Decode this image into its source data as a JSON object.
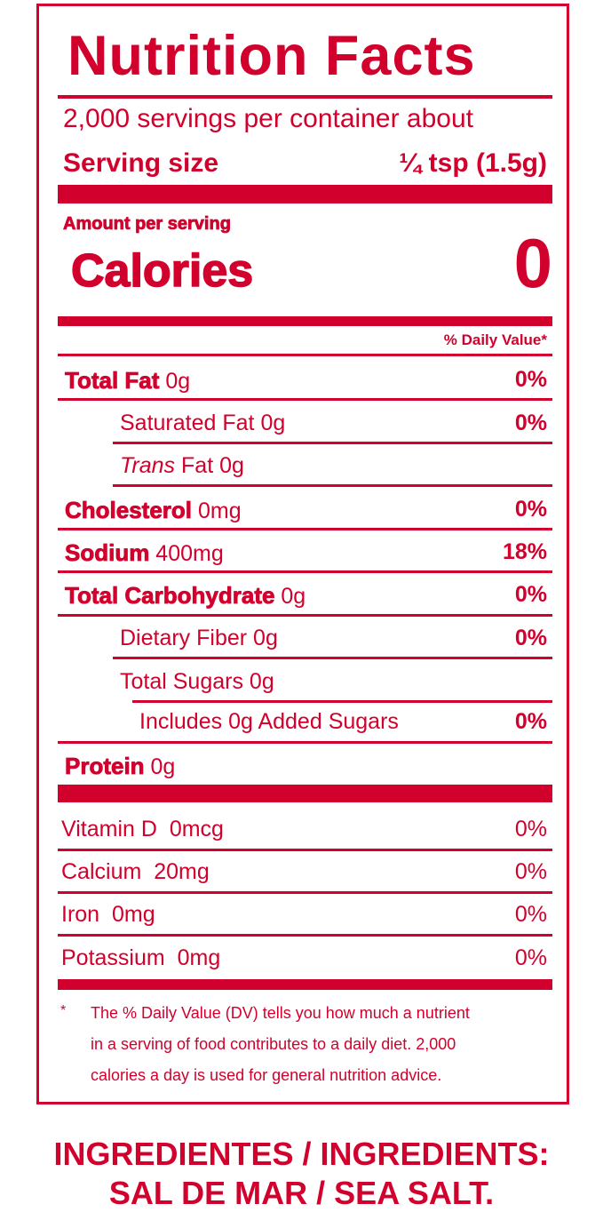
{
  "label": {
    "title": "Nutrition Facts",
    "servings_per_container": "2,000 servings per container about",
    "serving_size_label": "Serving size",
    "serving_size_value": "¼ tsp (1.5g)",
    "amount_per_serving": "Amount per serving",
    "calories_label": "Calories",
    "calories_value": "0",
    "daily_value_header": "% Daily Value*",
    "nutrients": [
      {
        "name": "Total Fat",
        "amount": "0g",
        "dv": "0%"
      },
      {
        "name": "Saturated Fat",
        "amount": "0g",
        "dv": "0%"
      },
      {
        "name": "Trans",
        "name_suffix": "Fat",
        "amount": "0g",
        "dv": ""
      },
      {
        "name": "Cholesterol",
        "amount": "0mg",
        "dv": "0%"
      },
      {
        "name": "Sodium",
        "amount": "400mg",
        "dv": "18%"
      },
      {
        "name": "Total Carbohydrate",
        "amount": "0g",
        "dv": "0%"
      },
      {
        "name": "Dietary Fiber",
        "amount": "0g",
        "dv": "0%"
      },
      {
        "name": "Total Sugars",
        "amount": "0g",
        "dv": ""
      },
      {
        "name": "Includes",
        "amount": "0g Added Sugars",
        "dv": "0%"
      },
      {
        "name": "Protein",
        "amount": "0g",
        "dv": ""
      }
    ],
    "vitamins": [
      {
        "name": "Vitamin D",
        "amount": "0mcg",
        "dv": "0%"
      },
      {
        "name": "Calcium",
        "amount": "20mg",
        "dv": "0%"
      },
      {
        "name": "Iron",
        "amount": "0mg",
        "dv": "0%"
      },
      {
        "name": "Potassium",
        "amount": "0mg",
        "dv": "0%"
      }
    ],
    "footnote_mark": "*",
    "footnote_lines": [
      "The % Daily Value (DV) tells you how much a nutrient",
      "in a serving of food contributes to a daily diet. 2,000",
      "calories a day is used for general nutrition advice."
    ]
  },
  "ingredients": {
    "heading": "INGREDIENTES / INGREDIENTS:",
    "value": "SAL DE MAR / SEA SALT."
  },
  "colors": {
    "label_red": "#d2002c"
  }
}
